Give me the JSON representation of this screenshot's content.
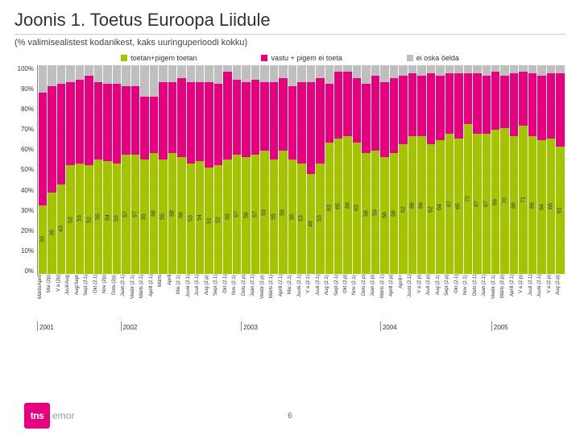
{
  "title": "Joonis 1. Toetus Euroopa Liidule",
  "subtitle": "(% valimisealistest kodanikest, kaks uuringuperioodi kokku)",
  "legend": [
    {
      "label": "toetan+pigem toetan",
      "color": "#a4c400"
    },
    {
      "label": "vastu + pigem ei toeta",
      "color": "#e6007e"
    },
    {
      "label": "ei oska öelda",
      "color": "#bfbfbf"
    }
  ],
  "colors": {
    "support": "#a4c400",
    "oppose": "#e6007e",
    "dk": "#bfbfbf",
    "bg": "#ffffff"
  },
  "yaxis": {
    "min": 0,
    "max": 100,
    "step": 10,
    "labels": [
      "100%",
      "90%",
      "80%",
      "70%",
      "60%",
      "50%",
      "40%",
      "30%",
      "20%",
      "10%",
      "0%"
    ]
  },
  "years": [
    {
      "label": "2001",
      "span": 9
    },
    {
      "label": "2002",
      "span": 13
    },
    {
      "label": "2003",
      "span": 15
    },
    {
      "label": "2004",
      "span": 12
    },
    {
      "label": "2005",
      "span": 8
    }
  ],
  "bars": [
    {
      "x": "Märts/Aprill",
      "s": 33,
      "o": 54,
      "d": 13
    },
    {
      "x": "Mai (2p)",
      "s": 39,
      "o": 51,
      "d": 10
    },
    {
      "x": "V a (2p)",
      "s": 43,
      "o": 48,
      "d": 9
    },
    {
      "x": "Juuli/Aug",
      "s": 52,
      "o": 40,
      "d": 8
    },
    {
      "x": "Aug/Sept",
      "s": 53,
      "o": 40,
      "d": 7
    },
    {
      "x": "Sept (2.1)",
      "s": 52,
      "o": 43,
      "d": 5
    },
    {
      "x": "Okt (2.1)",
      "s": 55,
      "o": 37,
      "d": 8
    },
    {
      "x": "Nov (2p)",
      "s": 54,
      "o": 37,
      "d": 9
    },
    {
      "x": "Dets (2p)",
      "s": 53,
      "o": 38,
      "d": 9
    },
    {
      "x": "Jaan (2.1)",
      "s": 57,
      "o": 33,
      "d": 10
    },
    {
      "x": "Veebr (2.1)",
      "s": 57,
      "o": 33,
      "d": 10
    },
    {
      "x": "Märts (2.1)",
      "s": 55,
      "o": 30,
      "d": 15
    },
    {
      "x": "Aprill (2.1)",
      "s": 58,
      "o": 27,
      "d": 15
    },
    {
      "x": "Märts",
      "s": 55,
      "o": 37,
      "d": 8
    },
    {
      "x": "Aprill",
      "s": 58,
      "o": 34,
      "d": 8
    },
    {
      "x": "Mai (2.1)",
      "s": 56,
      "o": 38,
      "d": 6
    },
    {
      "x": "Juuni (2.1)",
      "s": 53,
      "o": 39,
      "d": 8
    },
    {
      "x": "Juuli (2.1)",
      "s": 54,
      "o": 38,
      "d": 8
    },
    {
      "x": "Aug (2.p)",
      "s": 51,
      "o": 41,
      "d": 8
    },
    {
      "x": "Sept (2.1)",
      "s": 52,
      "o": 39,
      "d": 9
    },
    {
      "x": "Okt (2.1)",
      "s": 55,
      "o": 42,
      "d": 3
    },
    {
      "x": "Nov (2.1)",
      "s": 57,
      "o": 36,
      "d": 7
    },
    {
      "x": "Dets (2.p)",
      "s": 56,
      "o": 36,
      "d": 8
    },
    {
      "x": "Jaan (2.1)",
      "s": 57,
      "o": 36,
      "d": 7
    },
    {
      "x": "Veebr (2.p)",
      "s": 59,
      "o": 33,
      "d": 8
    },
    {
      "x": "Märts (2.1)",
      "s": 55,
      "o": 37,
      "d": 8
    },
    {
      "x": "Aprill (2.1)",
      "s": 59,
      "o": 35,
      "d": 6
    },
    {
      "x": "Mai (2.1)",
      "s": 55,
      "o": 35,
      "d": 10
    },
    {
      "x": "Juuni (2.1)",
      "s": 53,
      "o": 39,
      "d": 8
    },
    {
      "x": "V a (2.1)",
      "s": 48,
      "o": 44,
      "d": 8
    },
    {
      "x": "Juuli (2.1)",
      "s": 53,
      "o": 41,
      "d": 6
    },
    {
      "x": "Aug (2.1)",
      "s": 63,
      "o": 28,
      "d": 9
    },
    {
      "x": "Sept (2.1)",
      "s": 65,
      "o": 32,
      "d": 3
    },
    {
      "x": "Okt (2.p)",
      "s": 66,
      "o": 31,
      "d": 3
    },
    {
      "x": "Nov (2.1)",
      "s": 63,
      "o": 31,
      "d": 6
    },
    {
      "x": "Dets (2.p)",
      "s": 58,
      "o": 33,
      "d": 9
    },
    {
      "x": "Jaan (2.p)",
      "s": 59,
      "o": 36,
      "d": 5
    },
    {
      "x": "Märts (2.1)",
      "s": 56,
      "o": 36,
      "d": 8
    },
    {
      "x": "Aprill (2.p)",
      "s": 58,
      "o": 36,
      "d": 6
    },
    {
      "x": "Aprill+",
      "s": 62,
      "o": 33,
      "d": 5
    },
    {
      "x": "Juuni (2.1)",
      "s": 66,
      "o": 30,
      "d": 4
    },
    {
      "x": "V a (2.p)",
      "s": 66,
      "o": 29,
      "d": 5
    },
    {
      "x": "Juuli (2.p)",
      "s": 62,
      "o": 34,
      "d": 4
    },
    {
      "x": "Aug (2.1)",
      "s": 64,
      "o": 31,
      "d": 5
    },
    {
      "x": "Sept (2.p)",
      "s": 67,
      "o": 29,
      "d": 4
    },
    {
      "x": "Okt (2.1)",
      "s": 65,
      "o": 31,
      "d": 4
    },
    {
      "x": "Nov (2.1)",
      "s": 72,
      "o": 24,
      "d": 4
    },
    {
      "x": "Dets (2.1)",
      "s": 67,
      "o": 29,
      "d": 4
    },
    {
      "x": "Jaan (2.1)",
      "s": 67,
      "o": 28,
      "d": 5
    },
    {
      "x": "Veebr (2.1)",
      "s": 69,
      "o": 28,
      "d": 3
    },
    {
      "x": "Märts (2.p)",
      "s": 70,
      "o": 25,
      "d": 5
    },
    {
      "x": "Aprill (2.1)",
      "s": 66,
      "o": 30,
      "d": 4
    },
    {
      "x": "V a (2.p)",
      "s": 71,
      "o": 26,
      "d": 3
    },
    {
      "x": "Juuli (2.1)",
      "s": 66,
      "o": 30,
      "d": 4
    },
    {
      "x": "Juuni (2.1)",
      "s": 64,
      "o": 31,
      "d": 5
    },
    {
      "x": "V a (2.p)",
      "s": 65,
      "o": 31,
      "d": 4
    },
    {
      "x": "Aug (2.p)",
      "s": 61,
      "o": 35,
      "d": 4
    }
  ],
  "logo": {
    "box": "tns",
    "text": "emor"
  },
  "pagenum": "6"
}
